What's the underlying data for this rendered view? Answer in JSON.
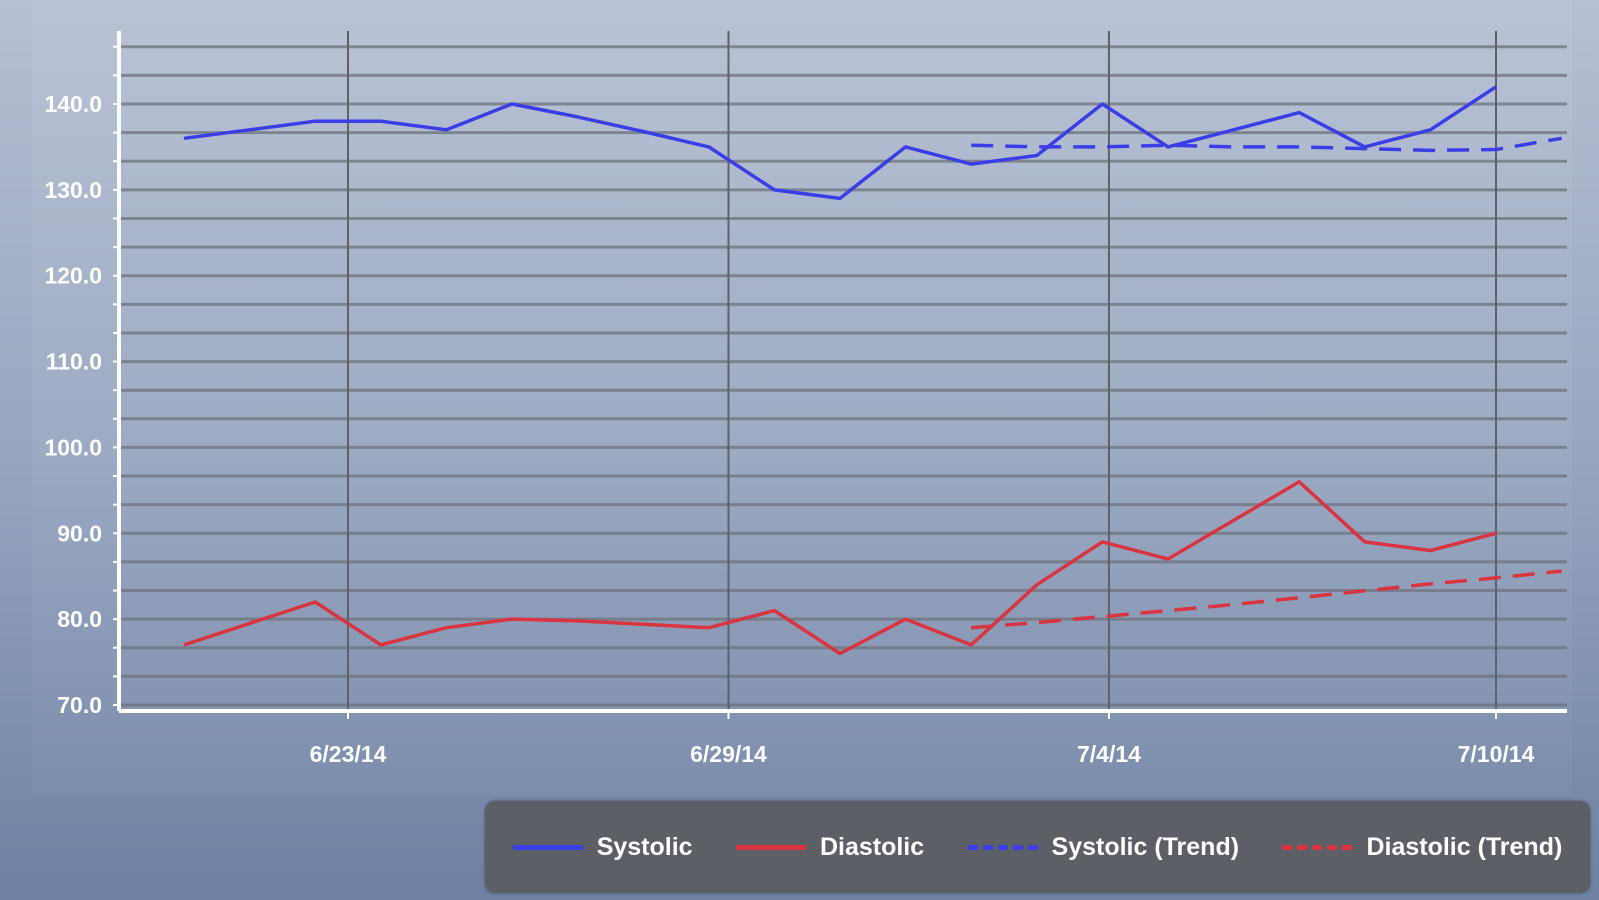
{
  "chart_data": {
    "type": "line",
    "title": "",
    "xlabel": "",
    "ylabel": "",
    "ylim": [
      70,
      148
    ],
    "yticks": [
      70,
      80,
      90,
      100,
      110,
      120,
      130,
      140
    ],
    "ytick_labels": [
      "70.0",
      "80.0",
      "90.0",
      "100.0",
      "110.0",
      "120.0",
      "130.0",
      "140.0"
    ],
    "x_index_range": [
      -2.5,
      21.1
    ],
    "xticks": [
      {
        "label": "6/23/14",
        "index": 2.5
      },
      {
        "label": "6/29/14",
        "index": 8.3
      },
      {
        "label": "7/4/14",
        "index": 14.1
      },
      {
        "label": "7/10/14",
        "index": 20
      }
    ],
    "grid": true,
    "legend_position": "bottom-right",
    "series": [
      {
        "name": "Systolic",
        "color": "#3a3ee6",
        "dashed": false,
        "start_index": 0,
        "values": [
          136,
          137,
          138,
          138,
          137,
          140,
          138.5,
          136.8,
          135,
          130,
          129,
          135,
          133,
          134,
          140,
          135,
          137,
          139,
          135,
          137,
          142
        ]
      },
      {
        "name": "Diastolic",
        "color": "#d9343f",
        "dashed": false,
        "start_index": 0,
        "values": [
          77,
          79.5,
          82,
          77,
          79,
          80,
          79.8,
          79.4,
          79,
          81,
          76,
          80,
          77,
          84,
          89,
          87,
          91.5,
          96,
          89,
          88,
          90
        ]
      },
      {
        "name": "Systolic (Trend)",
        "color": "#3a3ee6",
        "dashed": true,
        "start_index": 12,
        "values": [
          135.2,
          135,
          135,
          135.2,
          135,
          135,
          134.8,
          134.6,
          134.7,
          136
        ]
      },
      {
        "name": "Diastolic (Trend)",
        "color": "#d9343f",
        "dashed": true,
        "start_index": 12,
        "values": [
          79,
          79.6,
          80.3,
          81,
          81.7,
          82.5,
          83.3,
          84.1,
          84.8,
          85.6
        ]
      }
    ]
  }
}
